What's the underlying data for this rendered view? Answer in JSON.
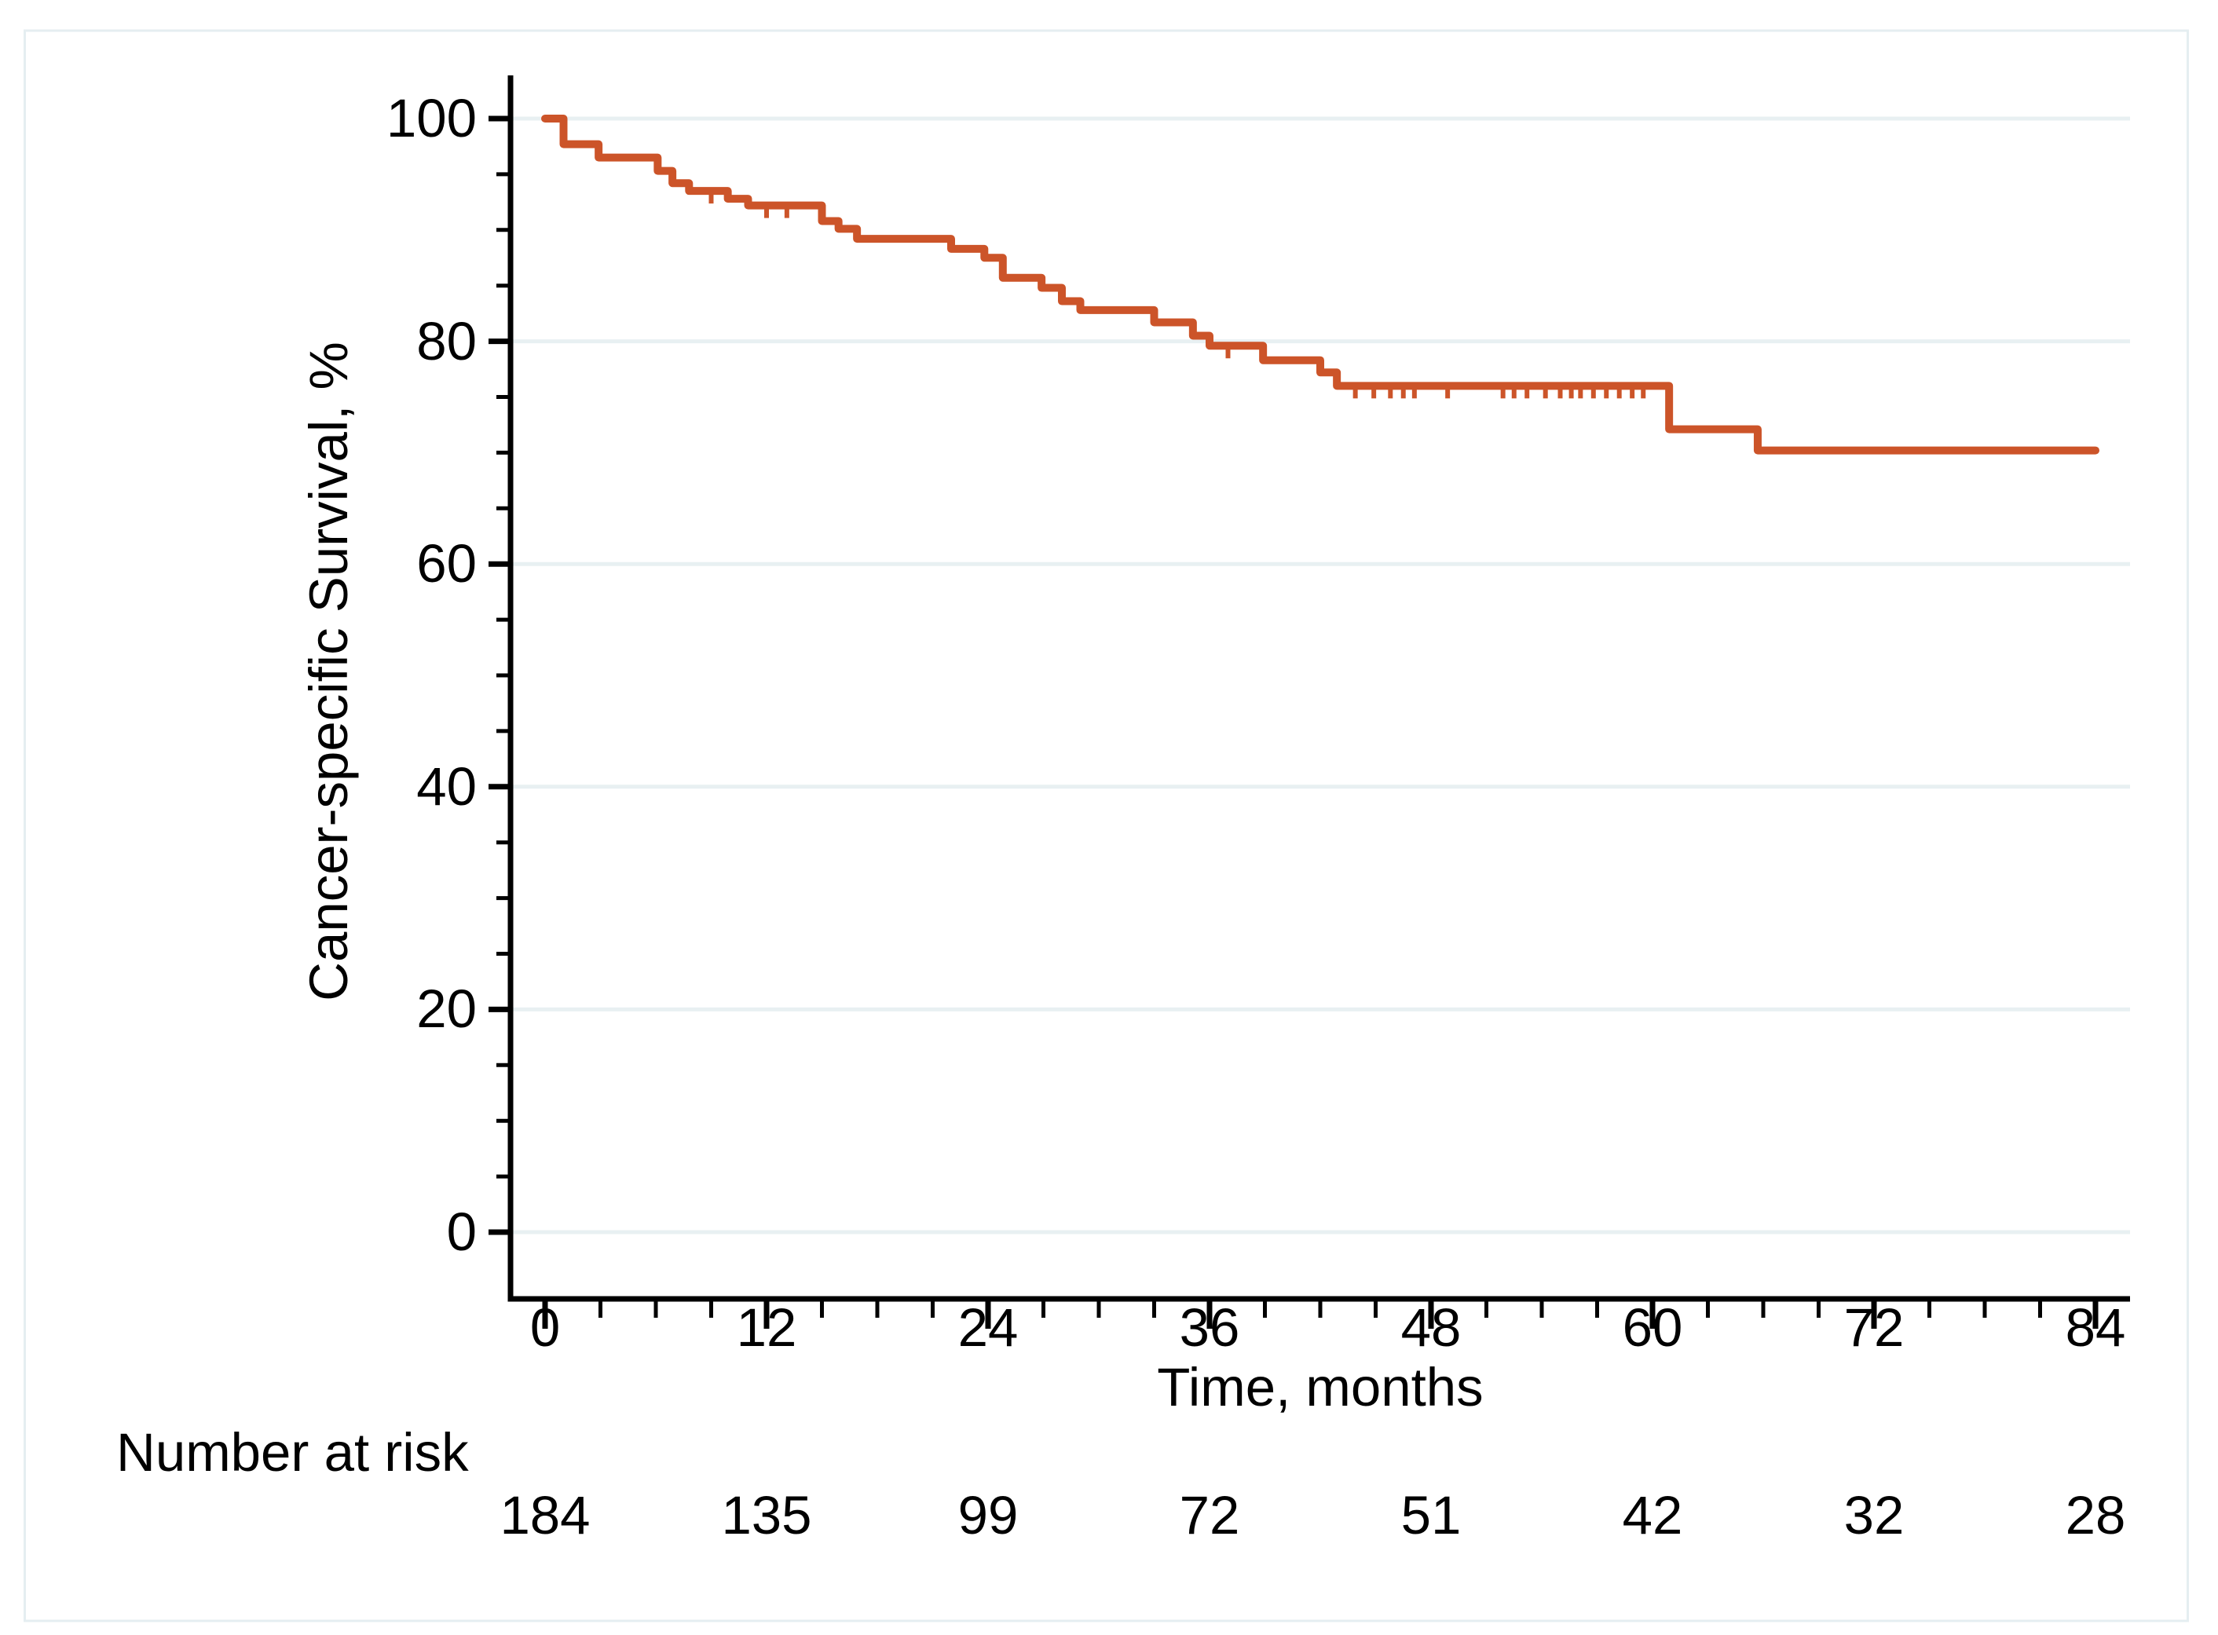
{
  "figure": {
    "background_color": "#ffffff",
    "border_color": "#e5eef1",
    "number_at_risk_label": "Number at risk"
  },
  "colors": {
    "curve": "#cc5429",
    "gridline": "#e8f0f2",
    "axis": "#000000"
  },
  "chart_data": {
    "type": "line",
    "subtype": "kaplan-meier-step-curve",
    "title": "",
    "xlabel": "Time, months",
    "ylabel": "Cancer-specific Survival, %",
    "xlim": [
      0,
      84
    ],
    "ylim": [
      0,
      100
    ],
    "x_major_ticks": [
      0,
      12,
      24,
      36,
      48,
      60,
      72,
      84
    ],
    "x_minor_tick_interval": 3,
    "y_major_ticks": [
      0,
      20,
      40,
      60,
      80,
      100
    ],
    "y_minor_tick_interval": 5,
    "grid": "horizontal-at-major-y-ticks",
    "legend": "none",
    "series": [
      {
        "name": "Cancer-specific survival",
        "color": "#cc5429",
        "steps": [
          [
            0,
            100
          ],
          [
            1.0,
            97.7
          ],
          [
            2.9,
            96.5
          ],
          [
            6.1,
            95.3
          ],
          [
            6.9,
            94.2
          ],
          [
            7.8,
            93.5
          ],
          [
            9.9,
            92.8
          ],
          [
            11.0,
            92.2
          ],
          [
            15.0,
            90.8
          ],
          [
            15.9,
            90.1
          ],
          [
            16.9,
            89.2
          ],
          [
            22.0,
            88.3
          ],
          [
            23.8,
            87.5
          ],
          [
            24.8,
            85.7
          ],
          [
            26.9,
            84.8
          ],
          [
            28.0,
            83.6
          ],
          [
            29.0,
            82.8
          ],
          [
            33.0,
            81.7
          ],
          [
            35.1,
            80.5
          ],
          [
            36.0,
            79.6
          ],
          [
            38.9,
            78.3
          ],
          [
            42.0,
            77.2
          ],
          [
            42.9,
            76.0
          ],
          [
            60.9,
            72.1
          ],
          [
            65.7,
            70.2
          ]
        ],
        "end_time": 84,
        "censor_marks": [
          [
            9.0,
            93.5
          ],
          [
            12.0,
            92.2
          ],
          [
            13.1,
            92.2
          ],
          [
            37.0,
            79.6
          ],
          [
            43.9,
            76.0
          ],
          [
            44.9,
            76.0
          ],
          [
            45.8,
            76.0
          ],
          [
            46.5,
            76.0
          ],
          [
            47.1,
            76.0
          ],
          [
            48.9,
            76.0
          ],
          [
            51.9,
            76.0
          ],
          [
            52.5,
            76.0
          ],
          [
            53.2,
            76.0
          ],
          [
            54.2,
            76.0
          ],
          [
            55.0,
            76.0
          ],
          [
            55.6,
            76.0
          ],
          [
            56.1,
            76.0
          ],
          [
            56.8,
            76.0
          ],
          [
            57.5,
            76.0
          ],
          [
            58.2,
            76.0
          ],
          [
            58.9,
            76.0
          ],
          [
            59.5,
            76.0
          ]
        ]
      }
    ],
    "number_at_risk": {
      "times": [
        0,
        12,
        24,
        36,
        48,
        60,
        72,
        84
      ],
      "counts": [
        184,
        135,
        99,
        72,
        51,
        42,
        32,
        28
      ]
    }
  }
}
